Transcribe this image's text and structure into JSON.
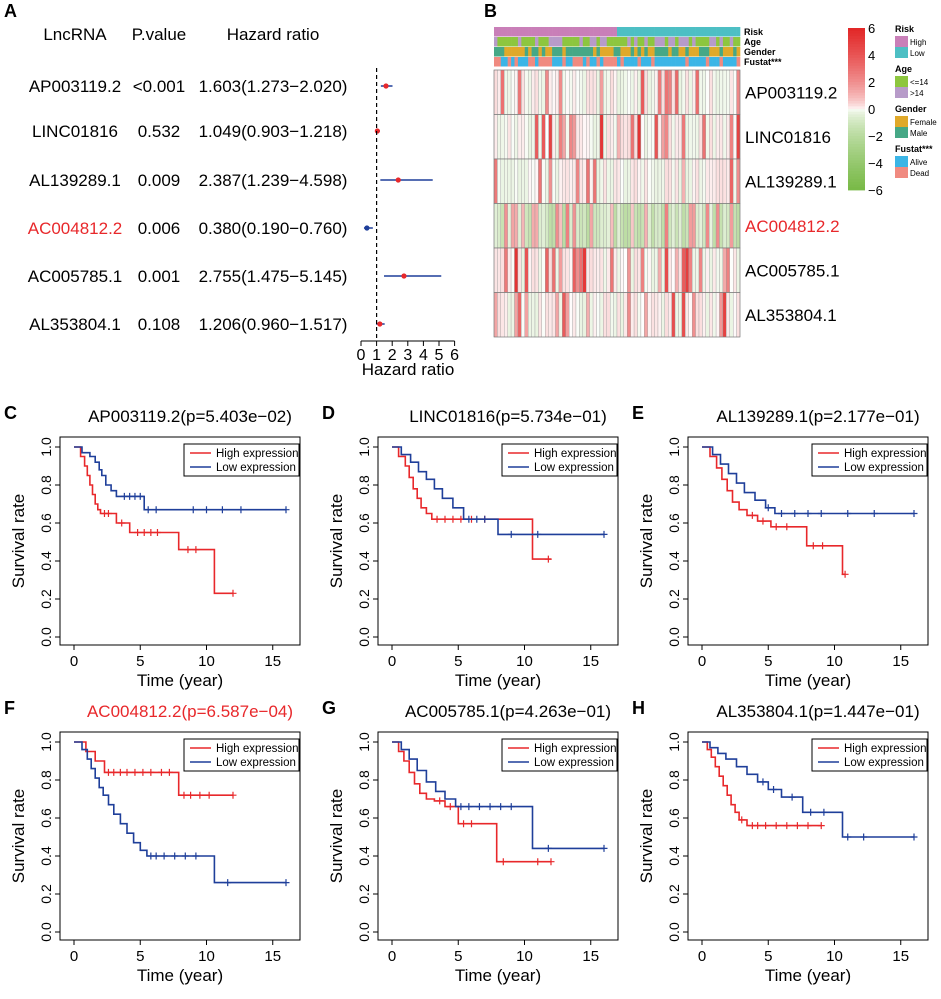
{
  "panel_labels": [
    "A",
    "B",
    "C",
    "D",
    "E",
    "F",
    "G",
    "H"
  ],
  "forest": {
    "headers": {
      "lncrna": "LncRNA",
      "pvalue": "P.value",
      "hr": "Hazard ratio"
    },
    "xlabel": "Hazard ratio",
    "ticks": [
      "0",
      "1",
      "2",
      "3",
      "4",
      "5",
      "6"
    ],
    "rows": [
      {
        "name": "AP003119.2",
        "p": "<0.001",
        "hr_text": "1.603(1.273−2.020)",
        "hr": 1.603,
        "lo": 1.273,
        "hi": 2.02,
        "highlight": false
      },
      {
        "name": "LINC01816",
        "p": "0.532",
        "hr_text": "1.049(0.903−1.218)",
        "hr": 1.049,
        "lo": 0.903,
        "hi": 1.218,
        "highlight": false
      },
      {
        "name": "AL139289.1",
        "p": "0.009",
        "hr_text": "2.387(1.239−4.598)",
        "hr": 2.387,
        "lo": 1.239,
        "hi": 4.598,
        "highlight": false
      },
      {
        "name": "AC004812.2",
        "p": "0.006",
        "hr_text": "0.380(0.190−0.760)",
        "hr": 0.38,
        "lo": 0.19,
        "hi": 0.76,
        "highlight": true
      },
      {
        "name": "AC005785.1",
        "p": "0.001",
        "hr_text": "2.755(1.475−5.145)",
        "hr": 2.755,
        "lo": 1.475,
        "hi": 5.145,
        "highlight": false
      },
      {
        "name": "AL353804.1",
        "p": "0.108",
        "hr_text": "1.206(0.960−1.517)",
        "hr": 1.206,
        "lo": 0.96,
        "hi": 1.517,
        "highlight": false
      }
    ]
  },
  "heatmap": {
    "annotation_rows": [
      "Risk",
      "Age",
      "Gender",
      "Fustat***"
    ],
    "genes": [
      "AP003119.2",
      "LINC01816",
      "AL139289.1",
      "AC004812.2",
      "AC005785.1",
      "AL353804.1"
    ],
    "highlight_gene": "AC004812.2",
    "colorbar_ticks": [
      "6",
      "4",
      "2",
      "0",
      "−2",
      "−4",
      "−6"
    ],
    "legend": [
      {
        "title": "Risk",
        "items": [
          {
            "label": "High",
            "color": "#C97FB8"
          },
          {
            "label": "Low",
            "color": "#4DBFC4"
          }
        ]
      },
      {
        "title": "Age",
        "items": [
          {
            "label": "<=14",
            "color": "#8DC63F"
          },
          {
            "label": ">14",
            "color": "#B79BC9"
          }
        ]
      },
      {
        "title": "Gender",
        "items": [
          {
            "label": "Female",
            "color": "#E0A92A"
          },
          {
            "label": "Male",
            "color": "#46A886"
          }
        ]
      },
      {
        "title": "Fustat***",
        "items": [
          {
            "label": "Alive",
            "color": "#3BB5E6"
          },
          {
            "label": "Dead",
            "color": "#F08A80"
          }
        ]
      }
    ]
  },
  "km_common": {
    "xlabel": "Time (year)",
    "ylabel": "Survival rate",
    "legend_high": "High expression",
    "legend_low": "Low expression",
    "xticks": [
      "0",
      "5",
      "10",
      "15"
    ],
    "yticks": [
      "0.0",
      "0.2",
      "0.4",
      "0.6",
      "0.8",
      "1.0"
    ]
  },
  "chart_data": [
    {
      "type": "forest",
      "title": "",
      "xlabel": "Hazard ratio",
      "xlim": [
        0,
        6
      ],
      "reference_line": 1,
      "categories": [
        "AP003119.2",
        "LINC01816",
        "AL139289.1",
        "AC004812.2",
        "AC005785.1",
        "AL353804.1"
      ],
      "series": [
        {
          "name": "Hazard ratio",
          "values": [
            1.603,
            1.049,
            2.387,
            0.38,
            2.755,
            1.206
          ]
        },
        {
          "name": "Lower 95% CI",
          "values": [
            1.273,
            0.903,
            1.239,
            0.19,
            1.475,
            0.96
          ]
        },
        {
          "name": "Upper 95% CI",
          "values": [
            2.02,
            1.218,
            4.598,
            0.76,
            5.145,
            1.517
          ]
        }
      ]
    },
    {
      "type": "heatmap",
      "title": "",
      "rows": [
        "AP003119.2",
        "LINC01816",
        "AL139289.1",
        "AC004812.2",
        "AC005785.1",
        "AL353804.1"
      ],
      "color_range": [
        -6,
        6
      ],
      "annotations": [
        "Risk",
        "Age",
        "Gender",
        "Fustat***"
      ]
    },
    {
      "type": "line",
      "panel": "C",
      "title": "AP003119.2(p=5.403e−02)",
      "xlabel": "Time (year)",
      "ylabel": "Survival rate",
      "xlim": [
        0,
        16
      ],
      "ylim": [
        0,
        1
      ],
      "series": [
        {
          "name": "High expression",
          "x": [
            0,
            0.5,
            0.8,
            1.0,
            1.2,
            1.4,
            1.6,
            1.8,
            2.0,
            2.8,
            3.2,
            4.2,
            4.6,
            6.0,
            7.9,
            8.3,
            10.6,
            12.0
          ],
          "y": [
            1.0,
            0.95,
            0.9,
            0.85,
            0.8,
            0.75,
            0.7,
            0.67,
            0.65,
            0.65,
            0.6,
            0.55,
            0.55,
            0.55,
            0.46,
            0.46,
            0.23,
            0.23
          ],
          "censor_x": [
            2.3,
            2.6,
            3.6,
            4.8,
            5.3,
            5.8,
            6.3,
            8.6,
            9.2,
            12.0
          ]
        },
        {
          "name": "Low expression",
          "x": [
            0,
            0.6,
            1.2,
            1.6,
            1.9,
            2.1,
            2.4,
            2.8,
            3.2,
            3.6,
            5.3,
            16.0
          ],
          "y": [
            1.0,
            0.97,
            0.95,
            0.92,
            0.88,
            0.85,
            0.8,
            0.77,
            0.74,
            0.74,
            0.67,
            0.67
          ],
          "censor_x": [
            3.8,
            4.2,
            4.6,
            5.0,
            5.6,
            6.2,
            9.0,
            10.0,
            11.2,
            12.6,
            16.0
          ]
        }
      ]
    },
    {
      "type": "line",
      "panel": "D",
      "title": "LINC01816(p=5.734e−01)",
      "xlabel": "Time (year)",
      "ylabel": "Survival rate",
      "xlim": [
        0,
        16
      ],
      "ylim": [
        0,
        1
      ],
      "series": [
        {
          "name": "High expression",
          "x": [
            0,
            0.5,
            1.0,
            1.3,
            1.6,
            1.9,
            2.2,
            2.6,
            3.0,
            10.6,
            12.0
          ],
          "y": [
            1.0,
            0.95,
            0.9,
            0.84,
            0.78,
            0.73,
            0.68,
            0.65,
            0.62,
            0.41,
            0.41
          ],
          "censor_x": [
            3.4,
            4.0,
            4.6,
            5.2,
            6.0,
            7.0,
            11.8
          ]
        },
        {
          "name": "Low expression",
          "x": [
            0,
            0.7,
            1.4,
            2.0,
            2.6,
            3.2,
            3.8,
            4.6,
            5.4,
            8.0,
            16.0
          ],
          "y": [
            1.0,
            0.96,
            0.92,
            0.87,
            0.83,
            0.78,
            0.73,
            0.68,
            0.62,
            0.54,
            0.54
          ],
          "censor_x": [
            5.8,
            6.4,
            7.0,
            9.0,
            11.0,
            16.0
          ]
        }
      ]
    },
    {
      "type": "line",
      "panel": "E",
      "title": "AL139289.1(p=2.177e−01)",
      "xlabel": "Time (year)",
      "ylabel": "Survival rate",
      "xlim": [
        0,
        16
      ],
      "ylim": [
        0,
        1
      ],
      "series": [
        {
          "name": "High expression",
          "x": [
            0,
            0.6,
            1.1,
            1.5,
            1.9,
            2.3,
            2.8,
            3.4,
            4.2,
            5.2,
            7.9,
            10.6,
            10.8
          ],
          "y": [
            1.0,
            0.95,
            0.89,
            0.83,
            0.77,
            0.71,
            0.67,
            0.64,
            0.61,
            0.58,
            0.48,
            0.33,
            0.33
          ],
          "censor_x": [
            3.8,
            4.6,
            5.6,
            6.4,
            8.4,
            9.1,
            10.8
          ]
        },
        {
          "name": "Low expression",
          "x": [
            0,
            0.8,
            1.4,
            2.0,
            2.6,
            3.2,
            4.0,
            4.8,
            5.5,
            16.0
          ],
          "y": [
            1.0,
            0.96,
            0.91,
            0.86,
            0.81,
            0.76,
            0.72,
            0.68,
            0.65,
            0.65
          ],
          "censor_x": [
            5.0,
            6.0,
            7.0,
            8.0,
            9.0,
            11.0,
            13.0,
            16.0
          ]
        }
      ]
    },
    {
      "type": "line",
      "panel": "F",
      "title": "AC004812.2(p=6.587e−04)",
      "xlabel": "Time (year)",
      "ylabel": "Survival rate",
      "xlim": [
        0,
        16
      ],
      "ylim": [
        0,
        1
      ],
      "series": [
        {
          "name": "High expression",
          "x": [
            0,
            0.9,
            1.6,
            2.3,
            7.9,
            12.0
          ],
          "y": [
            1.0,
            0.95,
            0.9,
            0.84,
            0.72,
            0.72
          ],
          "censor_x": [
            2.6,
            3.0,
            3.5,
            4.0,
            4.6,
            5.2,
            5.8,
            6.6,
            7.2,
            8.3,
            8.8,
            9.5,
            10.2,
            12.0
          ]
        },
        {
          "name": "Low expression",
          "x": [
            0,
            0.6,
            1.0,
            1.3,
            1.6,
            1.9,
            2.2,
            2.6,
            3.0,
            3.5,
            4.0,
            4.5,
            5.0,
            5.5,
            10.6,
            16.0
          ],
          "y": [
            1.0,
            0.96,
            0.91,
            0.86,
            0.81,
            0.76,
            0.72,
            0.67,
            0.62,
            0.57,
            0.52,
            0.47,
            0.43,
            0.4,
            0.26,
            0.26
          ],
          "censor_x": [
            5.8,
            6.2,
            6.8,
            7.6,
            8.4,
            9.2,
            11.6,
            16.0
          ]
        }
      ]
    },
    {
      "type": "line",
      "panel": "G",
      "title": "AC005785.1(p=4.263e−01)",
      "xlabel": "Time (year)",
      "ylabel": "Survival rate",
      "xlim": [
        0,
        16
      ],
      "ylim": [
        0,
        1
      ],
      "series": [
        {
          "name": "High expression",
          "x": [
            0,
            0.5,
            0.9,
            1.3,
            1.7,
            2.1,
            2.6,
            3.2,
            4.0,
            5.0,
            7.9,
            12.0
          ],
          "y": [
            1.0,
            0.95,
            0.9,
            0.84,
            0.78,
            0.73,
            0.7,
            0.69,
            0.66,
            0.57,
            0.37,
            0.37
          ],
          "censor_x": [
            3.6,
            4.4,
            5.4,
            6.0,
            8.4,
            11.0,
            12.0
          ]
        },
        {
          "name": "Low expression",
          "x": [
            0,
            0.7,
            1.3,
            1.9,
            2.6,
            3.3,
            4.0,
            4.8,
            10.6,
            16.0
          ],
          "y": [
            1.0,
            0.96,
            0.91,
            0.85,
            0.79,
            0.74,
            0.7,
            0.66,
            0.44,
            0.44
          ],
          "censor_x": [
            5.2,
            5.8,
            6.6,
            7.4,
            8.2,
            9.0,
            11.8,
            16.0
          ]
        }
      ]
    },
    {
      "type": "line",
      "panel": "H",
      "title": "AL353804.1(p=1.447e−01)",
      "xlabel": "Time (year)",
      "ylabel": "Survival rate",
      "xlim": [
        0,
        16
      ],
      "ylim": [
        0,
        1
      ],
      "series": [
        {
          "name": "High expression",
          "x": [
            0,
            0.4,
            0.7,
            1.0,
            1.3,
            1.6,
            1.9,
            2.2,
            2.5,
            2.8,
            3.4,
            9.0
          ],
          "y": [
            1.0,
            0.96,
            0.92,
            0.87,
            0.82,
            0.77,
            0.72,
            0.67,
            0.63,
            0.59,
            0.56,
            0.56
          ],
          "censor_x": [
            3.0,
            3.8,
            4.2,
            4.8,
            5.6,
            6.4,
            7.2,
            8.0,
            9.0
          ]
        },
        {
          "name": "Low expression",
          "x": [
            0,
            0.6,
            1.2,
            1.8,
            2.6,
            3.4,
            4.2,
            5.0,
            6.0,
            7.6,
            10.6,
            16.0
          ],
          "y": [
            1.0,
            0.97,
            0.94,
            0.91,
            0.87,
            0.83,
            0.79,
            0.75,
            0.71,
            0.63,
            0.5,
            0.5
          ],
          "censor_x": [
            4.6,
            5.4,
            6.8,
            8.2,
            9.2,
            11.0,
            12.2,
            16.0
          ]
        }
      ]
    }
  ]
}
